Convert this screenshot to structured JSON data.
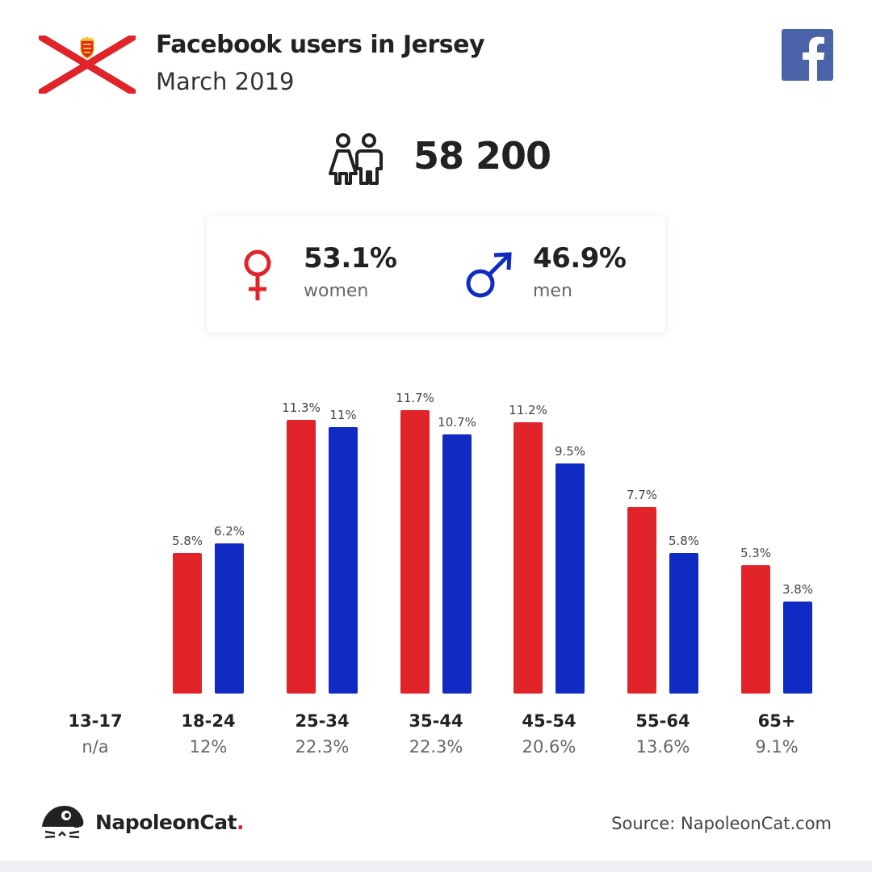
{
  "header": {
    "title": "Facebook users in Jersey",
    "subtitle": "March 2019",
    "flag_icon": "jersey-flag-icon",
    "social_icon": "facebook-icon"
  },
  "totals": {
    "users": "58 200",
    "icon": "users-icon"
  },
  "gender": {
    "women": {
      "pct": "53.1%",
      "label": "women",
      "icon": "female-symbol-icon",
      "color": "#e0242a"
    },
    "men": {
      "pct": "46.9%",
      "label": "men",
      "icon": "male-symbol-icon",
      "color": "#0f2bc4"
    }
  },
  "chart_data": {
    "type": "bar",
    "categories": [
      "13-17",
      "18-24",
      "25-34",
      "35-44",
      "45-54",
      "55-64",
      "65+"
    ],
    "category_shares": [
      "n/a",
      "12%",
      "22.3%",
      "22.3%",
      "20.6%",
      "13.6%",
      "9.1%"
    ],
    "series": [
      {
        "name": "women",
        "color": "#e0242a",
        "values": [
          null,
          5.8,
          11.3,
          11.7,
          11.2,
          7.7,
          5.3
        ],
        "labels": [
          "",
          "5.8%",
          "11.3%",
          "11.7%",
          "11.2%",
          "7.7%",
          "5.3%"
        ]
      },
      {
        "name": "men",
        "color": "#0f2bc4",
        "values": [
          null,
          6.2,
          11,
          10.7,
          9.5,
          5.8,
          3.8
        ],
        "labels": [
          "",
          "6.2%",
          "11%",
          "10.7%",
          "9.5%",
          "5.8%",
          "3.8%"
        ]
      }
    ],
    "ylim": [
      0,
      11.7
    ],
    "grid": false
  },
  "footer": {
    "brand": "NapoleonCat",
    "brand_dot": ".",
    "source": "Source: NapoleonCat.com",
    "logo_icon": "napoleoncat-logo-icon"
  }
}
